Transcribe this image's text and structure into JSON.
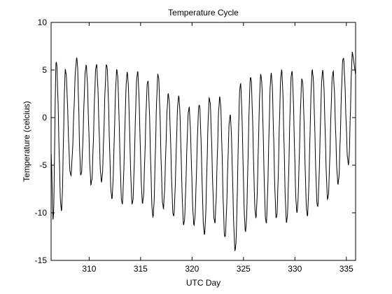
{
  "chart_data": {
    "type": "line",
    "title": "Temperature Cycle",
    "xlabel": "UTC Day",
    "ylabel": "Temperature (celcius)",
    "xlim": [
      306.3,
      335.9
    ],
    "ylim": [
      -15,
      10
    ],
    "xticks": [
      310,
      315,
      320,
      325,
      330,
      335
    ],
    "yticks": [
      -15,
      -10,
      -5,
      0,
      5,
      10
    ],
    "grid": false,
    "legend": "none",
    "line_color": "#000000",
    "series": [
      {
        "peaks": [
          {
            "x": 306.8,
            "y": 5.8
          },
          {
            "x": 307.7,
            "y": 5.0
          },
          {
            "x": 308.8,
            "y": 6.3
          },
          {
            "x": 309.7,
            "y": 5.5
          },
          {
            "x": 310.7,
            "y": 5.5
          },
          {
            "x": 311.7,
            "y": 5.5
          },
          {
            "x": 312.7,
            "y": 5.0
          },
          {
            "x": 313.7,
            "y": 4.8
          },
          {
            "x": 314.7,
            "y": 4.8
          },
          {
            "x": 315.7,
            "y": 3.8
          },
          {
            "x": 316.7,
            "y": 4.5
          },
          {
            "x": 317.7,
            "y": 2.5
          },
          {
            "x": 318.7,
            "y": 2.3
          },
          {
            "x": 319.7,
            "y": 1.0
          },
          {
            "x": 320.7,
            "y": 1.3
          },
          {
            "x": 321.7,
            "y": 2.0
          },
          {
            "x": 322.7,
            "y": 2.2
          },
          {
            "x": 323.7,
            "y": 0.3
          },
          {
            "x": 324.7,
            "y": 3.5
          },
          {
            "x": 325.7,
            "y": 4.2
          },
          {
            "x": 326.7,
            "y": 4.5
          },
          {
            "x": 327.7,
            "y": 4.7
          },
          {
            "x": 328.7,
            "y": 5.0
          },
          {
            "x": 329.7,
            "y": 4.8
          },
          {
            "x": 330.7,
            "y": 4.0
          },
          {
            "x": 331.7,
            "y": 5.0
          },
          {
            "x": 332.7,
            "y": 5.0
          },
          {
            "x": 333.7,
            "y": 4.8
          },
          {
            "x": 334.7,
            "y": 6.2
          },
          {
            "x": 335.6,
            "y": 6.8
          }
        ],
        "troughs": [
          {
            "x": 306.5,
            "y": -10.7
          },
          {
            "x": 307.3,
            "y": -9.8
          },
          {
            "x": 308.2,
            "y": -6.0
          },
          {
            "x": 309.2,
            "y": -6.0
          },
          {
            "x": 310.2,
            "y": -7.0
          },
          {
            "x": 311.2,
            "y": -6.8
          },
          {
            "x": 312.2,
            "y": -8.5
          },
          {
            "x": 313.2,
            "y": -9.0
          },
          {
            "x": 314.2,
            "y": -9.0
          },
          {
            "x": 315.2,
            "y": -9.0
          },
          {
            "x": 316.2,
            "y": -10.5
          },
          {
            "x": 317.2,
            "y": -9.5
          },
          {
            "x": 318.2,
            "y": -10.3
          },
          {
            "x": 319.2,
            "y": -11.2
          },
          {
            "x": 320.2,
            "y": -11.3
          },
          {
            "x": 321.2,
            "y": -12.3
          },
          {
            "x": 322.2,
            "y": -11.0
          },
          {
            "x": 323.2,
            "y": -12.5
          },
          {
            "x": 324.2,
            "y": -13.9
          },
          {
            "x": 325.2,
            "y": -12.0
          },
          {
            "x": 326.2,
            "y": -10.5
          },
          {
            "x": 327.2,
            "y": -11.0
          },
          {
            "x": 328.2,
            "y": -10.5
          },
          {
            "x": 329.2,
            "y": -11.0
          },
          {
            "x": 330.2,
            "y": -10.0
          },
          {
            "x": 331.2,
            "y": -10.3
          },
          {
            "x": 332.2,
            "y": -9.3
          },
          {
            "x": 333.2,
            "y": -8.5
          },
          {
            "x": 334.2,
            "y": -7.0
          },
          {
            "x": 335.2,
            "y": -5.0
          }
        ]
      }
    ]
  }
}
